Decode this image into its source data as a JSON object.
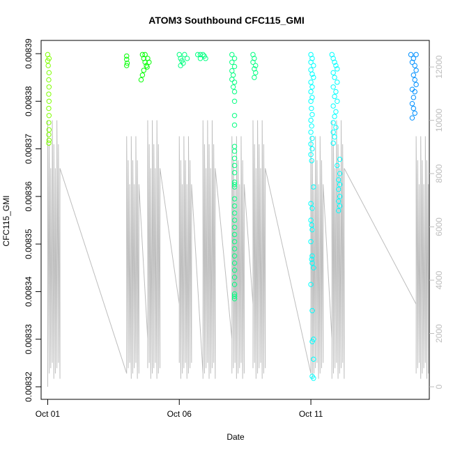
{
  "chart_data": {
    "type": "scatter",
    "title": "ATOM3 Southbound CFC115_GMI",
    "xlabel": "Date",
    "ylabel": "CFC115_GMI",
    "x_ticks": [
      "Oct 01",
      "Oct 06",
      "Oct 11"
    ],
    "y_ticks": [
      "0.00832",
      "0.00833",
      "0.00834",
      "0.00835",
      "0.00836",
      "0.00837",
      "0.00838",
      "0.00839"
    ],
    "y_right_ticks": [
      "0",
      "2000",
      "4000",
      "6000",
      "8000",
      "10000",
      "12000"
    ],
    "xlim": [
      "Sep 30 18:00",
      "Oct 15 12:00"
    ],
    "ylim": [
      0.00832,
      0.00839
    ],
    "y_right_lim": [
      0,
      12500
    ],
    "grid": false,
    "legend": "none",
    "point_color_scale": [
      "#7fff00",
      "#00ff00",
      "#00ff80",
      "#00ffff",
      "#0090ff"
    ],
    "line_color": "#bdbdbd",
    "segment_x_days": [
      0.0,
      3.0,
      3.8,
      5.0,
      5.9,
      7.0,
      7.8,
      10.0,
      10.8,
      14.0
    ],
    "segment_x_days_note": "",
    "series": [
      {
        "name": "",
        "points": [
          [
            0.0,
            0.0083898
          ],
          [
            0.0,
            0.0083885
          ],
          [
            0.05,
            0.008389
          ],
          [
            0.02,
            0.0083875
          ],
          [
            0.05,
            0.008386
          ],
          [
            0.04,
            0.0083845
          ],
          [
            0.05,
            0.008383
          ],
          [
            0.04,
            0.0083815
          ],
          [
            0.05,
            0.00838
          ],
          [
            0.04,
            0.0083785
          ],
          [
            0.05,
            0.008377
          ],
          [
            0.04,
            0.0083755
          ],
          [
            0.05,
            0.008374
          ],
          [
            0.04,
            0.008373
          ],
          [
            0.05,
            0.0083718
          ],
          [
            0.04,
            0.0083712
          ],
          [
            3.0,
            0.0083895
          ],
          [
            3.0,
            0.0083888
          ],
          [
            3.02,
            0.008388
          ],
          [
            3.0,
            0.0083875
          ],
          [
            3.6,
            0.0083898
          ],
          [
            3.65,
            0.008389
          ],
          [
            3.7,
            0.0083882
          ],
          [
            3.75,
            0.0083875
          ],
          [
            3.65,
            0.0083865
          ],
          [
            3.6,
            0.0083855
          ],
          [
            3.55,
            0.0083845
          ],
          [
            3.7,
            0.0083898
          ],
          [
            3.8,
            0.008389
          ],
          [
            3.85,
            0.0083882
          ],
          [
            3.78,
            0.0083872
          ],
          [
            5.0,
            0.0083898
          ],
          [
            5.05,
            0.008389
          ],
          [
            5.1,
            0.0083885
          ],
          [
            5.2,
            0.0083898
          ],
          [
            5.3,
            0.008389
          ],
          [
            5.15,
            0.008388
          ],
          [
            5.05,
            0.0083875
          ],
          [
            5.7,
            0.0083898
          ],
          [
            5.8,
            0.008389
          ],
          [
            5.9,
            0.0083898
          ],
          [
            6.0,
            0.008389
          ],
          [
            5.95,
            0.0083895
          ],
          [
            5.8,
            0.0083898
          ],
          [
            7.0,
            0.0083898
          ],
          [
            7.1,
            0.008389
          ],
          [
            7.0,
            0.0083882
          ],
          [
            7.1,
            0.0083873
          ],
          [
            7.0,
            0.0083864
          ],
          [
            7.05,
            0.0083855
          ],
          [
            7.0,
            0.0083846
          ],
          [
            7.1,
            0.008384
          ],
          [
            7.05,
            0.008383
          ],
          [
            7.1,
            0.008382
          ],
          [
            7.1,
            0.00838
          ],
          [
            7.1,
            0.008377
          ],
          [
            7.1,
            0.008375
          ],
          [
            7.1,
            0.0083705
          ],
          [
            7.1,
            0.0083695
          ],
          [
            7.1,
            0.008368
          ],
          [
            7.1,
            0.0083665
          ],
          [
            7.1,
            0.008365
          ],
          [
            7.1,
            0.008363
          ],
          [
            7.1,
            0.0083625
          ],
          [
            7.1,
            0.008362
          ],
          [
            7.1,
            0.0083595
          ],
          [
            7.1,
            0.008358
          ],
          [
            7.1,
            0.0083565
          ],
          [
            7.1,
            0.008355
          ],
          [
            7.1,
            0.0083535
          ],
          [
            7.1,
            0.008352
          ],
          [
            7.1,
            0.0083505
          ],
          [
            7.1,
            0.008349
          ],
          [
            7.1,
            0.0083475
          ],
          [
            7.1,
            0.008346
          ],
          [
            7.1,
            0.0083445
          ],
          [
            7.1,
            0.008343
          ],
          [
            7.1,
            0.0083415
          ],
          [
            7.1,
            0.0083395
          ],
          [
            7.1,
            0.008339
          ],
          [
            7.1,
            0.0083385
          ],
          [
            7.8,
            0.0083898
          ],
          [
            7.85,
            0.008389
          ],
          [
            7.8,
            0.0083882
          ],
          [
            7.9,
            0.0083875
          ],
          [
            7.85,
            0.0083868
          ],
          [
            7.9,
            0.008386
          ],
          [
            7.85,
            0.008385
          ],
          [
            10.0,
            0.0083898
          ],
          [
            10.05,
            0.008389
          ],
          [
            10.0,
            0.0083882
          ],
          [
            10.1,
            0.0083875
          ],
          [
            10.0,
            0.0083866
          ],
          [
            10.05,
            0.0083857
          ],
          [
            10.1,
            0.008385
          ],
          [
            10.0,
            0.008384
          ],
          [
            10.05,
            0.008383
          ],
          [
            10.0,
            0.008382
          ],
          [
            10.05,
            0.0083808
          ],
          [
            10.0,
            0.00838
          ],
          [
            10.02,
            0.0083785
          ],
          [
            10.05,
            0.0083772
          ],
          [
            10.0,
            0.008376
          ],
          [
            10.03,
            0.0083748
          ],
          [
            10.0,
            0.0083735
          ],
          [
            10.05,
            0.0083722
          ],
          [
            10.0,
            0.008371
          ],
          [
            10.05,
            0.00837
          ],
          [
            10.0,
            0.0083688
          ],
          [
            10.03,
            0.0083675
          ],
          [
            10.1,
            0.008362
          ],
          [
            10.0,
            0.0083585
          ],
          [
            10.05,
            0.0083575
          ],
          [
            10.0,
            0.008355
          ],
          [
            10.03,
            0.008354
          ],
          [
            10.05,
            0.008353
          ],
          [
            10.0,
            0.0083505
          ],
          [
            10.05,
            0.0083475
          ],
          [
            10.03,
            0.0083468
          ],
          [
            10.05,
            0.008346
          ],
          [
            10.1,
            0.008345
          ],
          [
            10.0,
            0.0083415
          ],
          [
            10.05,
            0.008336
          ],
          [
            10.1,
            0.00833
          ],
          [
            10.05,
            0.0083295
          ],
          [
            10.1,
            0.0083258
          ],
          [
            10.05,
            0.0083222
          ],
          [
            10.1,
            0.0083218
          ],
          [
            10.8,
            0.0083898
          ],
          [
            10.85,
            0.008389
          ],
          [
            10.9,
            0.0083882
          ],
          [
            10.95,
            0.0083875
          ],
          [
            11.0,
            0.0083868
          ],
          [
            10.85,
            0.008386
          ],
          [
            10.9,
            0.008385
          ],
          [
            11.0,
            0.008384
          ],
          [
            10.85,
            0.008383
          ],
          [
            10.95,
            0.008382
          ],
          [
            10.9,
            0.008381
          ],
          [
            11.0,
            0.00838
          ],
          [
            10.85,
            0.008379
          ],
          [
            10.95,
            0.0083778
          ],
          [
            10.9,
            0.0083768
          ],
          [
            10.85,
            0.0083755
          ],
          [
            10.95,
            0.0083745
          ],
          [
            10.85,
            0.0083735
          ],
          [
            10.9,
            0.0083725
          ],
          [
            10.85,
            0.0083712
          ],
          [
            11.1,
            0.0083678
          ],
          [
            11.0,
            0.0083665
          ],
          [
            11.1,
            0.0083648
          ],
          [
            11.05,
            0.0083635
          ],
          [
            11.1,
            0.0083625
          ],
          [
            11.05,
            0.0083615
          ],
          [
            11.1,
            0.00836
          ],
          [
            11.05,
            0.008359
          ],
          [
            11.1,
            0.008358
          ],
          [
            11.05,
            0.008357
          ],
          [
            13.8,
            0.0083898
          ],
          [
            13.9,
            0.008389
          ],
          [
            14.0,
            0.0083898
          ],
          [
            13.85,
            0.0083882
          ],
          [
            13.95,
            0.0083875
          ],
          [
            14.0,
            0.0083865
          ],
          [
            13.9,
            0.0083855
          ],
          [
            13.95,
            0.0083845
          ],
          [
            14.0,
            0.0083835
          ],
          [
            13.85,
            0.0083825
          ],
          [
            13.95,
            0.008382
          ],
          [
            13.9,
            0.0083808
          ],
          [
            13.85,
            0.0083795
          ],
          [
            13.9,
            0.0083785
          ],
          [
            13.95,
            0.0083775
          ],
          [
            13.85,
            0.0083765
          ]
        ]
      }
    ]
  }
}
